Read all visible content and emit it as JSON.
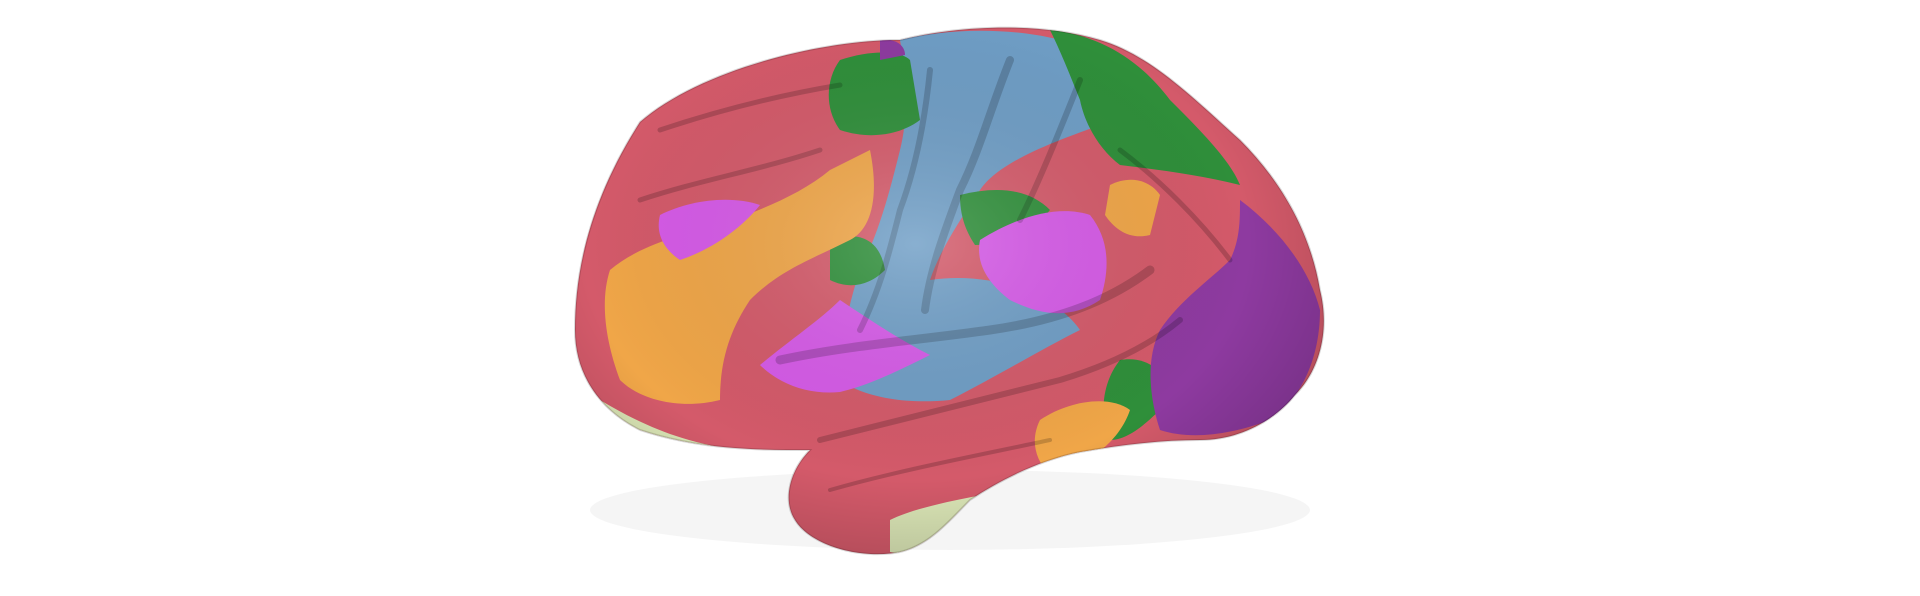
{
  "scene": {
    "subject": "cortical-surface-parcellation",
    "view": "lateral-left-hemisphere",
    "background_color": "#ffffff"
  },
  "parcellation_colors": {
    "red": "#d45a6a",
    "orange": "#f0a648",
    "magenta": "#d65ae8",
    "blue": "#6f9ec6",
    "green": "#2f8f3a",
    "purple": "#8e3aa0",
    "pale_green": "#dbe6b6"
  }
}
